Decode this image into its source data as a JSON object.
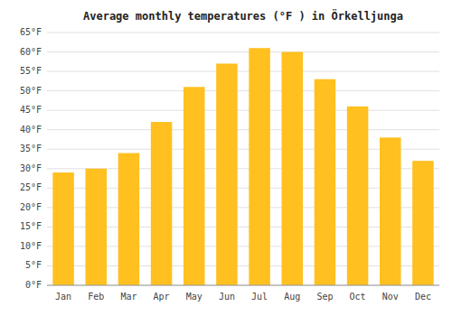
{
  "chart_data": {
    "type": "bar",
    "title": "Average monthly temperatures (°F ) in Örkelljunga",
    "categories": [
      "Jan",
      "Feb",
      "Mar",
      "Apr",
      "May",
      "Jun",
      "Jul",
      "Aug",
      "Sep",
      "Oct",
      "Nov",
      "Dec"
    ],
    "values": [
      29,
      30,
      34,
      42,
      51,
      57,
      61,
      60,
      53,
      46,
      38,
      32
    ],
    "color": "#FFC020",
    "ylim": [
      0,
      65
    ],
    "yticks": [
      {
        "value": 0,
        "label": "0°F"
      },
      {
        "value": 5,
        "label": "5°F"
      },
      {
        "value": 10,
        "label": "10°F"
      },
      {
        "value": 15,
        "label": "15°F"
      },
      {
        "value": 20,
        "label": "20°F"
      },
      {
        "value": 25,
        "label": "25°F"
      },
      {
        "value": 30,
        "label": "30°F"
      },
      {
        "value": 35,
        "label": "35°F"
      },
      {
        "value": 40,
        "label": "40°F"
      },
      {
        "value": 45,
        "label": "45°F"
      },
      {
        "value": 50,
        "label": "50°F"
      },
      {
        "value": 55,
        "label": "55°F"
      },
      {
        "value": 60,
        "label": "60°F"
      },
      {
        "value": 65,
        "label": "65°F"
      }
    ],
    "grid": true
  }
}
